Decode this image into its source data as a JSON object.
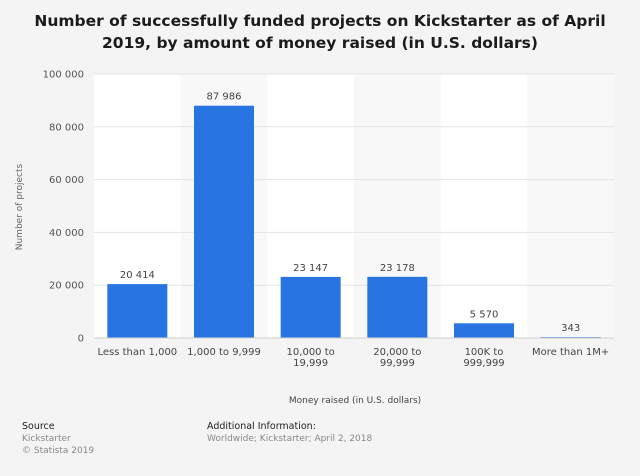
{
  "title": "Number of successfully funded projects on Kickstarter as of April 2019, by amount of money raised (in U.S. dollars)",
  "chart_data": {
    "type": "bar",
    "categories": [
      "Less than 1,000",
      "1,000 to 9,999",
      "10,000 to 19,999",
      "20,000 to 99,999",
      "100K to 999,999",
      "More than 1M+"
    ],
    "values": [
      20414,
      87986,
      23147,
      23178,
      5570,
      343
    ],
    "value_labels": [
      "20 414",
      "87 986",
      "23 147",
      "23 178",
      "5 570",
      "343"
    ],
    "ylabel": "Number of projects",
    "xlabel": "Money raised (in U.S. dollars)",
    "ylim": [
      0,
      100000
    ],
    "yticks": [
      0,
      20000,
      40000,
      60000,
      80000,
      100000
    ],
    "ytick_labels": [
      "0",
      "20 000",
      "40 000",
      "60 000",
      "80 000",
      "100 000"
    ],
    "bar_color": "#2875e2",
    "grid": true
  },
  "footer": {
    "source_heading": "Source",
    "source_lines": [
      "Kickstarter",
      "© Statista 2019"
    ],
    "info_heading": "Additional Information:",
    "info_text": "Worldwide; Kickstarter; April 2, 2018"
  }
}
